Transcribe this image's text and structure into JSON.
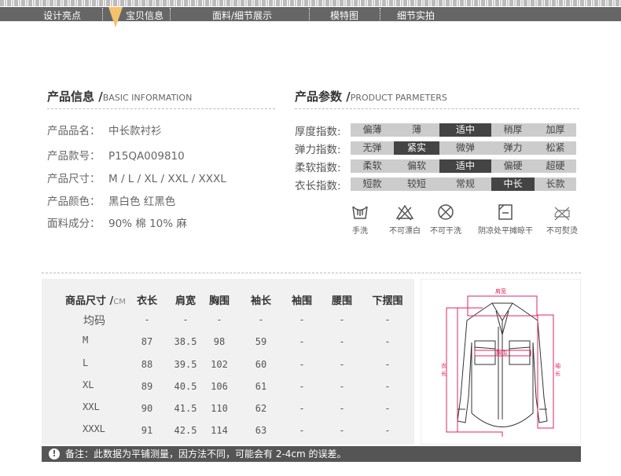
{
  "nav": {
    "tabs": [
      "设计亮点",
      "宝贝信息",
      "面料/细节展示",
      "模特图",
      "细节实拍"
    ],
    "active": 1
  },
  "basic": {
    "title": "产品信息 /",
    "subtitle": "BASIC INFORMATION",
    "rows": [
      {
        "label": "产品品名：",
        "value": "中长款衬衫"
      },
      {
        "label": "产品款号：",
        "value": "P15QA009810"
      },
      {
        "label": "产品尺寸：",
        "value": "M / L / XL / XXL / XXXL"
      },
      {
        "label": "产品颜色：",
        "value": "黑白色 红黑色"
      },
      {
        "label": "面料成分：",
        "value": "90% 棉  10% 麻"
      }
    ]
  },
  "params": {
    "title": "产品参数 /",
    "subtitle": "PRODUCT PARMETERS",
    "rows": [
      {
        "label": "厚度指数:",
        "options": [
          "偏薄",
          "薄",
          "适中",
          "稍厚",
          "加厚"
        ],
        "selected": 2
      },
      {
        "label": "弹力指数:",
        "options": [
          "无弹",
          "紧实",
          "微弹",
          "弹力",
          "松紧"
        ],
        "selected": 1
      },
      {
        "label": "柔软指数:",
        "options": [
          "柔软",
          "偏软",
          "适中",
          "偏硬",
          "超硬"
        ],
        "selected": 2
      },
      {
        "label": "衣长指数:",
        "options": [
          "短款",
          "较短",
          "常规",
          "中长",
          "长款"
        ],
        "selected": 3
      }
    ]
  },
  "care": [
    {
      "icon": "hand-wash-icon",
      "label": "手洗"
    },
    {
      "icon": "no-bleach-icon",
      "label": "不可漂白"
    },
    {
      "icon": "no-dry-clean-icon",
      "label": "不可干洗"
    },
    {
      "icon": "dry-flat-shade-icon",
      "label": "阴凉处平摊晾干"
    },
    {
      "icon": "no-iron-icon",
      "label": "不可熨烫"
    }
  ],
  "size_table": {
    "title": "商品尺寸 /",
    "unit": "CM",
    "headers": [
      "衣长",
      "肩宽",
      "胸围",
      "袖长",
      "袖围",
      "腰围",
      "下摆围"
    ],
    "rows": [
      [
        "均码",
        "-",
        "-",
        "-",
        "-",
        "-",
        "-",
        "-"
      ],
      [
        "M",
        "87",
        "38.5",
        "98",
        "59",
        "-",
        "-",
        "-"
      ],
      [
        "L",
        "88",
        "39.5",
        "102",
        "60",
        "-",
        "-",
        "-"
      ],
      [
        "XL",
        "89",
        "40.5",
        "106",
        "61",
        "-",
        "-",
        "-"
      ],
      [
        "XXL",
        "90",
        "41.5",
        "110",
        "62",
        "-",
        "-",
        "-"
      ],
      [
        "XXXL",
        "91",
        "42.5",
        "114",
        "63",
        "-",
        "-",
        "-"
      ]
    ]
  },
  "diagram": {
    "shoulder": "肩宽",
    "chest": "胸围",
    "length": "衣长",
    "sleeve": "袖长"
  },
  "note": "备注：此数据为平铺测量，因方法不同，可能会有 2-4cm 的误差。",
  "colors": {
    "nav": "#666666",
    "highlight": "#f5c26b",
    "selected": "#444444",
    "measure": "#e0245e"
  }
}
